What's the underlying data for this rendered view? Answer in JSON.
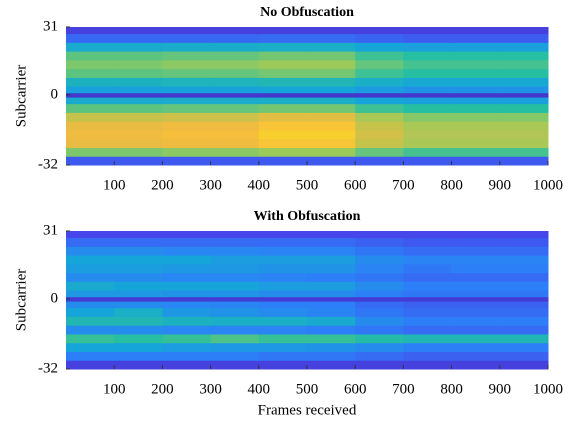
{
  "chart_data": [
    {
      "type": "heatmap",
      "title": "No Obfuscation",
      "ylabel": "Subcarrier",
      "colormap": "parula",
      "zlim": [
        0,
        1
      ],
      "xlim": [
        0,
        1000
      ],
      "xticks": [
        100,
        200,
        300,
        400,
        500,
        600,
        700,
        800,
        900,
        1000
      ],
      "ylim": [
        -32,
        31
      ],
      "yticks": [
        -32,
        0,
        31
      ],
      "x_edges": [
        0,
        100,
        200,
        300,
        400,
        500,
        600,
        700,
        800,
        900,
        1000
      ],
      "y_edges": [
        -32,
        -28,
        -24,
        -20,
        -16,
        -12,
        -8,
        -4,
        -1,
        1,
        4,
        8,
        12,
        16,
        20,
        24,
        28,
        31
      ],
      "z": [
        [
          0.2,
          0.2,
          0.2,
          0.2,
          0.2,
          0.2,
          0.2,
          0.2,
          0.2,
          0.2
        ],
        [
          0.71,
          0.71,
          0.73,
          0.73,
          0.75,
          0.75,
          0.68,
          0.64,
          0.64,
          0.64
        ],
        [
          0.86,
          0.86,
          0.87,
          0.87,
          0.9,
          0.9,
          0.81,
          0.77,
          0.77,
          0.77
        ],
        [
          0.87,
          0.87,
          0.89,
          0.89,
          0.92,
          0.92,
          0.83,
          0.78,
          0.78,
          0.78
        ],
        [
          0.86,
          0.86,
          0.87,
          0.87,
          0.9,
          0.9,
          0.81,
          0.77,
          0.77,
          0.77
        ],
        [
          0.81,
          0.81,
          0.82,
          0.82,
          0.85,
          0.85,
          0.77,
          0.72,
          0.72,
          0.72
        ],
        [
          0.67,
          0.67,
          0.68,
          0.68,
          0.7,
          0.7,
          0.63,
          0.6,
          0.6,
          0.6
        ],
        [
          0.48,
          0.48,
          0.49,
          0.49,
          0.5,
          0.5,
          0.45,
          0.43,
          0.43,
          0.43
        ],
        [
          0.08,
          0.08,
          0.08,
          0.08,
          0.08,
          0.08,
          0.08,
          0.08,
          0.08,
          0.08
        ],
        [
          0.43,
          0.43,
          0.44,
          0.44,
          0.45,
          0.45,
          0.41,
          0.38,
          0.38,
          0.38
        ],
        [
          0.52,
          0.52,
          0.53,
          0.53,
          0.55,
          0.55,
          0.5,
          0.47,
          0.47,
          0.47
        ],
        [
          0.67,
          0.67,
          0.68,
          0.68,
          0.7,
          0.7,
          0.63,
          0.6,
          0.6,
          0.6
        ],
        [
          0.71,
          0.71,
          0.73,
          0.73,
          0.75,
          0.75,
          0.68,
          0.64,
          0.64,
          0.64
        ],
        [
          0.67,
          0.67,
          0.68,
          0.68,
          0.7,
          0.7,
          0.63,
          0.6,
          0.6,
          0.6
        ],
        [
          0.48,
          0.48,
          0.49,
          0.49,
          0.5,
          0.5,
          0.45,
          0.43,
          0.43,
          0.43
        ],
        [
          0.24,
          0.24,
          0.24,
          0.24,
          0.25,
          0.25,
          0.23,
          0.21,
          0.21,
          0.21
        ],
        [
          0.12,
          0.12,
          0.12,
          0.12,
          0.12,
          0.12,
          0.12,
          0.12,
          0.12,
          0.12
        ]
      ]
    },
    {
      "type": "heatmap",
      "title": "With Obfuscation",
      "ylabel": "Subcarrier",
      "xlabel": "Frames received",
      "colormap": "parula",
      "zlim": [
        0,
        1
      ],
      "xlim": [
        0,
        1000
      ],
      "xticks": [
        100,
        200,
        300,
        400,
        500,
        600,
        700,
        800,
        900,
        1000
      ],
      "ylim": [
        -32,
        31
      ],
      "yticks": [
        -32,
        0,
        31
      ],
      "x_edges": [
        0,
        100,
        200,
        300,
        400,
        500,
        600,
        700,
        800,
        900,
        1000
      ],
      "y_edges": [
        -32,
        -28,
        -24,
        -20,
        -16,
        -12,
        -8,
        -4,
        -1,
        1,
        4,
        8,
        12,
        16,
        20,
        24,
        28,
        31
      ],
      "z": [
        [
          0.12,
          0.12,
          0.12,
          0.12,
          0.12,
          0.12,
          0.12,
          0.12,
          0.12,
          0.12
        ],
        [
          0.3,
          0.3,
          0.3,
          0.3,
          0.28,
          0.28,
          0.25,
          0.22,
          0.22,
          0.22
        ],
        [
          0.45,
          0.45,
          0.42,
          0.4,
          0.4,
          0.38,
          0.35,
          0.3,
          0.3,
          0.3
        ],
        [
          0.62,
          0.6,
          0.62,
          0.65,
          0.62,
          0.62,
          0.58,
          0.55,
          0.55,
          0.55
        ],
        [
          0.35,
          0.35,
          0.33,
          0.32,
          0.32,
          0.3,
          0.28,
          0.25,
          0.25,
          0.25
        ],
        [
          0.55,
          0.55,
          0.52,
          0.5,
          0.5,
          0.48,
          0.35,
          0.3,
          0.3,
          0.3
        ],
        [
          0.45,
          0.5,
          0.4,
          0.38,
          0.35,
          0.32,
          0.28,
          0.25,
          0.25,
          0.25
        ],
        [
          0.35,
          0.35,
          0.33,
          0.32,
          0.3,
          0.3,
          0.25,
          0.22,
          0.22,
          0.22
        ],
        [
          0.1,
          0.1,
          0.1,
          0.1,
          0.1,
          0.1,
          0.1,
          0.1,
          0.1,
          0.1
        ],
        [
          0.4,
          0.4,
          0.38,
          0.38,
          0.35,
          0.35,
          0.3,
          0.28,
          0.28,
          0.28
        ],
        [
          0.48,
          0.45,
          0.45,
          0.45,
          0.42,
          0.42,
          0.35,
          0.3,
          0.3,
          0.3
        ],
        [
          0.35,
          0.35,
          0.33,
          0.33,
          0.32,
          0.3,
          0.28,
          0.25,
          0.25,
          0.25
        ],
        [
          0.42,
          0.42,
          0.4,
          0.4,
          0.38,
          0.38,
          0.32,
          0.28,
          0.3,
          0.3
        ],
        [
          0.45,
          0.45,
          0.45,
          0.42,
          0.42,
          0.42,
          0.35,
          0.32,
          0.32,
          0.32
        ],
        [
          0.35,
          0.35,
          0.33,
          0.33,
          0.32,
          0.32,
          0.28,
          0.25,
          0.25,
          0.25
        ],
        [
          0.25,
          0.25,
          0.25,
          0.25,
          0.25,
          0.25,
          0.22,
          0.2,
          0.2,
          0.2
        ],
        [
          0.15,
          0.15,
          0.15,
          0.15,
          0.15,
          0.15,
          0.15,
          0.15,
          0.15,
          0.15
        ]
      ]
    }
  ]
}
